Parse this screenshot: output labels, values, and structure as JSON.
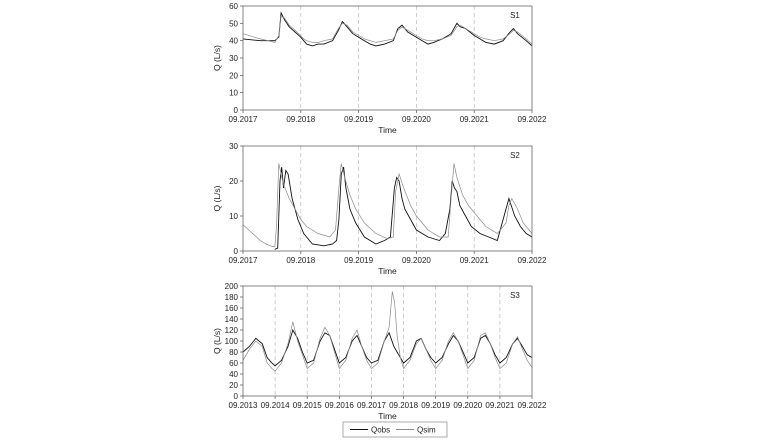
{
  "legend": {
    "obs_label": "Qobs",
    "sim_label": "Qsim"
  },
  "chart_data": [
    {
      "type": "line",
      "title": "S1",
      "xlabel": "Time",
      "ylabel": "Q (L/s)",
      "ylim": [
        0,
        60
      ],
      "yticks": [
        0,
        10,
        20,
        30,
        40,
        50,
        60
      ],
      "xlim": [
        "09.2017",
        "09.2022"
      ],
      "xticks": [
        "09.2017",
        "09.2018",
        "09.2019",
        "09.2020",
        "09.2021",
        "09.2022"
      ],
      "grid_x": "dashed vertical at yearly ticks",
      "x_units": "years",
      "series": [
        {
          "name": "Qobs",
          "x": [
            0,
            0.3,
            0.55,
            0.62,
            0.66,
            0.72,
            0.8,
            0.9,
            1.0,
            1.05,
            1.1,
            1.2,
            1.3,
            1.4,
            1.55,
            1.65,
            1.72,
            1.8,
            1.9,
            2.0,
            2.1,
            2.2,
            2.3,
            2.45,
            2.6,
            2.68,
            2.75,
            2.85,
            3.0,
            3.1,
            3.2,
            3.3,
            3.45,
            3.6,
            3.7,
            3.76,
            3.85,
            4.0,
            4.1,
            4.2,
            4.35,
            4.5,
            4.62,
            4.68,
            4.75,
            4.9,
            5.0
          ],
          "y": [
            41,
            40,
            40,
            42,
            56,
            52,
            48,
            45,
            42,
            40,
            38,
            37,
            38,
            38,
            40,
            46,
            51,
            48,
            44,
            42,
            40,
            38,
            37,
            38,
            40,
            47,
            49,
            45,
            42,
            40,
            38,
            39,
            41,
            44,
            50,
            48,
            47,
            43,
            41,
            39,
            38,
            40,
            45,
            47,
            44,
            40,
            37
          ]
        },
        {
          "name": "Qsim",
          "x": [
            0,
            0.3,
            0.55,
            0.62,
            0.66,
            0.72,
            0.8,
            0.9,
            1.0,
            1.05,
            1.1,
            1.2,
            1.3,
            1.4,
            1.55,
            1.65,
            1.72,
            1.8,
            1.9,
            2.0,
            2.1,
            2.2,
            2.3,
            2.45,
            2.6,
            2.68,
            2.75,
            2.85,
            3.0,
            3.1,
            3.2,
            3.3,
            3.45,
            3.6,
            3.7,
            3.76,
            3.85,
            4.0,
            4.1,
            4.2,
            4.35,
            4.5,
            4.62,
            4.68,
            4.75,
            4.9,
            5.0
          ],
          "y": [
            44,
            41,
            39,
            43,
            54,
            53,
            49,
            46,
            43,
            41,
            40,
            39,
            39,
            40,
            41,
            47,
            50,
            49,
            45,
            43,
            41,
            40,
            39,
            40,
            41,
            46,
            48,
            46,
            43,
            41,
            40,
            40,
            41,
            43,
            48,
            49,
            47,
            44,
            42,
            41,
            40,
            41,
            44,
            46,
            45,
            41,
            38
          ]
        }
      ]
    },
    {
      "type": "line",
      "title": "S2",
      "xlabel": "Time",
      "ylabel": "Q (L/s)",
      "ylim": [
        0,
        30
      ],
      "yticks": [
        0,
        10,
        20,
        30
      ],
      "xlim": [
        "09.2017",
        "09.2022"
      ],
      "xticks": [
        "09.2017",
        "09.2018",
        "09.2019",
        "09.2020",
        "09.2021",
        "09.2022"
      ],
      "grid_x": "dashed vertical at yearly ticks",
      "x_units": "years",
      "series": [
        {
          "name": "Qobs",
          "x": [
            0.55,
            0.6,
            0.64,
            0.67,
            0.7,
            0.74,
            0.78,
            0.85,
            0.95,
            1.05,
            1.2,
            1.4,
            1.55,
            1.62,
            1.66,
            1.7,
            1.74,
            1.78,
            1.85,
            1.95,
            2.1,
            2.3,
            2.45,
            2.55,
            2.62,
            2.66,
            2.7,
            2.75,
            2.8,
            2.9,
            3.0,
            3.2,
            3.4,
            3.5,
            3.58,
            3.62,
            3.66,
            3.7,
            3.75,
            3.85,
            3.95,
            4.1,
            4.25,
            4.4,
            4.55,
            4.6,
            4.64,
            4.7,
            4.8,
            4.9,
            5.0
          ],
          "y": [
            0.5,
            0.8,
            20,
            24,
            18,
            23,
            22,
            15,
            9,
            5,
            2,
            1.5,
            2,
            3,
            9,
            22,
            24,
            18,
            12,
            8,
            4,
            2,
            3,
            4,
            18,
            21,
            20,
            15,
            12,
            9,
            6,
            4,
            3,
            5,
            12,
            20,
            18,
            17,
            13,
            10,
            7,
            5,
            4,
            3,
            12,
            15,
            13,
            10,
            7,
            5,
            4
          ]
        },
        {
          "name": "Qsim",
          "x": [
            0,
            0.1,
            0.2,
            0.3,
            0.4,
            0.5,
            0.55,
            0.58,
            0.62,
            0.66,
            0.7,
            0.75,
            0.8,
            0.9,
            1.0,
            1.1,
            1.3,
            1.5,
            1.6,
            1.66,
            1.7,
            1.76,
            1.85,
            1.95,
            2.1,
            2.3,
            2.5,
            2.6,
            2.64,
            2.7,
            2.78,
            2.9,
            3.0,
            3.2,
            3.4,
            3.55,
            3.6,
            3.65,
            3.7,
            3.8,
            3.9,
            4.0,
            4.2,
            4.4,
            4.55,
            4.6,
            4.65,
            4.75,
            4.85,
            5.0
          ],
          "y": [
            7.5,
            6,
            4.5,
            3,
            2,
            1.3,
            1.2,
            7,
            25,
            22,
            19,
            17,
            15,
            12,
            9,
            7,
            5,
            4,
            6,
            18,
            25,
            21,
            16,
            12,
            8,
            5,
            3.5,
            4,
            17,
            22,
            18,
            13,
            10,
            6,
            4,
            4,
            15,
            25,
            21,
            16,
            13,
            11,
            7,
            5,
            8,
            13,
            15,
            12,
            8,
            5
          ]
        }
      ]
    },
    {
      "type": "line",
      "title": "S3",
      "xlabel": "Time",
      "ylabel": "Q (L/s)",
      "ylim": [
        0,
        200
      ],
      "yticks": [
        0,
        20,
        40,
        60,
        80,
        100,
        120,
        140,
        160,
        180,
        200
      ],
      "xlim": [
        "09.2013",
        "09.2022"
      ],
      "xticks": [
        "09.2013",
        "09.2014",
        "09.2015",
        "09.2016",
        "09.2017",
        "09.2018",
        "09.2019",
        "09.2020",
        "09.2021",
        "09.2022"
      ],
      "grid_x": "dashed vertical at yearly ticks",
      "x_units": "years",
      "series": [
        {
          "name": "Qobs",
          "x": [
            0,
            0.2,
            0.4,
            0.6,
            0.75,
            0.9,
            1.0,
            1.2,
            1.4,
            1.55,
            1.7,
            1.85,
            2.0,
            2.2,
            2.4,
            2.55,
            2.7,
            2.85,
            3.0,
            3.2,
            3.4,
            3.55,
            3.7,
            3.85,
            4.0,
            4.2,
            4.4,
            4.55,
            4.7,
            4.85,
            5.0,
            5.2,
            5.4,
            5.55,
            5.7,
            5.85,
            6.0,
            6.2,
            6.4,
            6.55,
            6.7,
            6.85,
            7.0,
            7.2,
            7.4,
            7.55,
            7.7,
            7.85,
            8.0,
            8.2,
            8.4,
            8.55,
            8.7,
            8.85,
            9.0
          ],
          "y": [
            80,
            90,
            105,
            95,
            70,
            60,
            55,
            65,
            90,
            120,
            105,
            80,
            60,
            65,
            100,
            115,
            110,
            85,
            60,
            70,
            100,
            110,
            90,
            70,
            60,
            65,
            100,
            115,
            90,
            75,
            60,
            70,
            100,
            105,
            85,
            70,
            60,
            70,
            95,
            110,
            100,
            80,
            60,
            70,
            105,
            110,
            95,
            75,
            60,
            70,
            95,
            105,
            90,
            75,
            70
          ]
        },
        {
          "name": "Qsim",
          "x": [
            0,
            0.2,
            0.4,
            0.6,
            0.75,
            0.9,
            1.0,
            1.2,
            1.4,
            1.55,
            1.7,
            1.85,
            2.0,
            2.2,
            2.4,
            2.55,
            2.7,
            2.85,
            3.0,
            3.2,
            3.4,
            3.55,
            3.7,
            3.85,
            4.0,
            4.2,
            4.4,
            4.55,
            4.65,
            4.72,
            4.8,
            4.9,
            5.0,
            5.2,
            5.4,
            5.55,
            5.7,
            5.85,
            6.0,
            6.2,
            6.4,
            6.55,
            6.7,
            6.85,
            7.0,
            7.2,
            7.4,
            7.55,
            7.7,
            7.85,
            8.0,
            8.2,
            8.4,
            8.55,
            8.7,
            8.85,
            9.0
          ],
          "y": [
            65,
            85,
            100,
            90,
            60,
            50,
            45,
            60,
            95,
            135,
            100,
            75,
            50,
            60,
            105,
            125,
            110,
            80,
            50,
            65,
            105,
            120,
            90,
            65,
            50,
            60,
            100,
            125,
            190,
            170,
            110,
            70,
            50,
            65,
            95,
            105,
            85,
            65,
            50,
            65,
            100,
            115,
            100,
            75,
            50,
            65,
            110,
            115,
            95,
            70,
            50,
            60,
            95,
            108,
            85,
            65,
            52
          ]
        }
      ]
    }
  ]
}
